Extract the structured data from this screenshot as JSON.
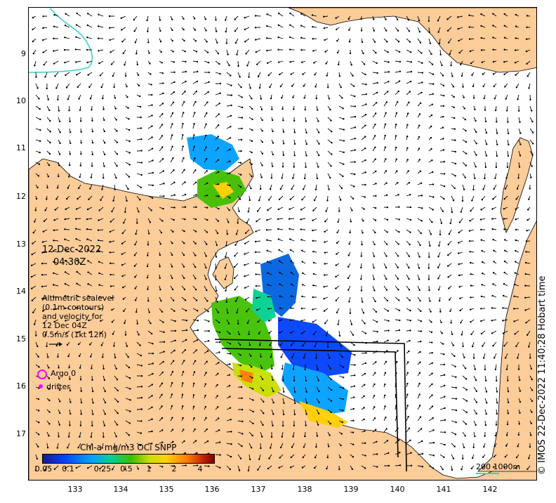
{
  "map": {
    "date_label": "12-Dec-2022",
    "time_label": "04:30Z",
    "lat_ticks": [
      "9",
      "10",
      "11",
      "12",
      "13",
      "14",
      "15",
      "16",
      "17"
    ],
    "lon_ticks": [
      "133",
      "134",
      "135",
      "136",
      "137",
      "138",
      "139",
      "140",
      "141",
      "142"
    ],
    "lat_range": [
      -8.0,
      -17.9
    ],
    "lon_range": [
      132.0,
      142.9
    ],
    "land_color": "#fccc99",
    "contour_color": "#40d0d0"
  },
  "legend": {
    "note_lines": [
      "Altimetric sealevel",
      "(0.1m contours)",
      "and velocity for",
      "12 Dec 04Z",
      "0.5m/s (1kt 12h)"
    ],
    "argo_label": "Argo 0",
    "drifter_label": "drifter",
    "argo_color": "#ff00ff"
  },
  "colorbar": {
    "title": "Chl-a mg/m3 OCi SNPP",
    "ticks": [
      "0.05",
      "0.1",
      "0.25",
      "0.5",
      "1",
      "2",
      "4"
    ]
  },
  "scale": {
    "label": "200  1000m"
  },
  "credit": "© IMOS 22-Dec-2022 11:40:28 Hobart time"
}
